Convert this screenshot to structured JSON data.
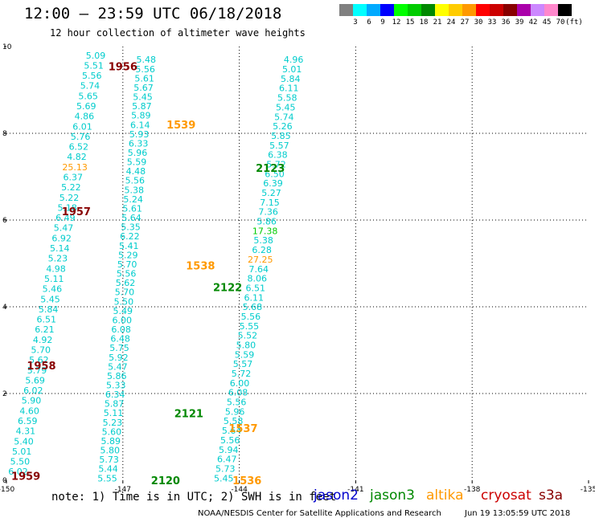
{
  "title": "12:00 – 23:59 UTC 06/18/2018",
  "subtitle": "12 hour collection of altimeter wave heights",
  "legend": {
    "colors": [
      "#808080",
      "#00ffff",
      "#00aaff",
      "#0000ff",
      "#00ff00",
      "#00cc00",
      "#008800",
      "#ffff00",
      "#ffcc00",
      "#ff9900",
      "#ff0000",
      "#cc0000",
      "#880000",
      "#aa00aa",
      "#cc88ff",
      "#ff88cc",
      "#000000"
    ],
    "labels": [
      "3",
      "6",
      "9",
      "12",
      "15",
      "18",
      "21",
      "24",
      "27",
      "30",
      "33",
      "36",
      "39",
      "42",
      "45",
      "70",
      "(ft)"
    ]
  },
  "footer": {
    "note": "note: 1) Time is in UTC; 2) SWH is in feet",
    "satellites": [
      {
        "name": "jason2",
        "color": "#0000cc"
      },
      {
        "name": "jason3",
        "color": "#008800"
      },
      {
        "name": "altika",
        "color": "#ff9900"
      },
      {
        "name": "cryosat",
        "color": "#cc0000"
      },
      {
        "name": "s3a",
        "color": "#880000"
      }
    ],
    "credit": "NOAA/NESDIS Center for Satellite Applications and Research",
    "generated": "Jun 19 13:05:59 UTC 2018"
  },
  "chart_data": {
    "type": "scatter",
    "xlim": [
      -150,
      -135
    ],
    "ylim": [
      0,
      10
    ],
    "xticks": [
      "-150",
      "-147",
      "-144",
      "-141",
      "-138",
      "-135"
    ],
    "yticks": [
      "0",
      "2",
      "4",
      "6",
      "8",
      "10"
    ],
    "grid": true,
    "value_color": "#00cccc",
    "tracks": [
      {
        "values": [
          "5.09",
          "5.51",
          "5.56",
          "5.74",
          "5.65",
          "5.69",
          "4.86",
          "6.01",
          "5.76",
          "6.52",
          "4.82",
          "25.13",
          "6.37",
          "5.22",
          "5.22",
          "5.18",
          "6.49",
          "5.47",
          "6.92",
          "5.14",
          "5.23",
          "4.98",
          "5.11",
          "5.46",
          "5.45",
          "5.84",
          "6.51",
          "6.21",
          "4.92",
          "5.70",
          "5.62",
          "5.79",
          "5.69",
          "6.02",
          "5.90",
          "4.60",
          "6.59",
          "4.31",
          "5.40",
          "5.01",
          "5.50",
          "6.02"
        ],
        "colors": {
          "11": "#ff9900"
        },
        "x_top": -147.7,
        "x_bottom": -149.7,
        "y_top": 9.8,
        "y_bottom": 0.2
      },
      {
        "values": [
          "5.48",
          "5.56",
          "5.61",
          "5.67",
          "5.45",
          "5.87",
          "5.89",
          "6.14",
          "5.93",
          "6.33",
          "5.96",
          "5.59",
          "4.48",
          "5.56",
          "5.38",
          "5.24",
          "5.61",
          "5.64",
          "5.35",
          "6.22",
          "5.41",
          "5.29",
          "5.70",
          "5.56",
          "5.62",
          "5.70",
          "5.50",
          "5.49",
          "6.00",
          "6.08",
          "6.48",
          "5.75",
          "5.92",
          "5.47",
          "5.86",
          "5.33",
          "6.34",
          "5.87",
          "5.11",
          "5.23",
          "5.60",
          "5.89",
          "5.80",
          "5.73",
          "5.44",
          "5.55"
        ],
        "x_top": -146.4,
        "x_bottom": -147.4,
        "y_top": 9.7,
        "y_bottom": 0.05
      },
      {
        "values": [
          "4.96",
          "5.01",
          "5.84",
          "6.11",
          "5.58",
          "5.45",
          "5.74",
          "5.26",
          "5.85",
          "5.57",
          "6.38",
          "5.72",
          "6.50",
          "6.39",
          "5.27",
          "7.15",
          "7.36",
          "5.86",
          "17.38",
          "5.38",
          "6.28",
          "27.25",
          "7.64",
          "8.06",
          "6.51",
          "6.11",
          "5.68",
          "5.56",
          "5.55",
          "5.52",
          "5.80",
          "5.59",
          "5.57",
          "5.72",
          "6.00",
          "6.08",
          "5.56",
          "5.96",
          "5.58",
          "5.64",
          "5.56",
          "5.94",
          "6.47",
          "5.73",
          "5.45"
        ],
        "colors": {
          "18": "#00cc00",
          "21": "#ff9900"
        },
        "x_top": -142.6,
        "x_bottom": -144.4,
        "y_top": 9.7,
        "y_bottom": 0.05
      }
    ],
    "pass_labels": [
      {
        "text": "1956",
        "x": -147.0,
        "y": 9.55,
        "color": "#880000"
      },
      {
        "text": "1539",
        "x": -145.5,
        "y": 8.2,
        "color": "#ff9900"
      },
      {
        "text": "2123",
        "x": -143.2,
        "y": 7.2,
        "color": "#008800"
      },
      {
        "text": "1957",
        "x": -148.2,
        "y": 6.2,
        "color": "#880000"
      },
      {
        "text": "1538",
        "x": -145.0,
        "y": 4.95,
        "color": "#ff9900"
      },
      {
        "text": "2122",
        "x": -144.3,
        "y": 4.45,
        "color": "#008800"
      },
      {
        "text": "1958",
        "x": -149.1,
        "y": 2.65,
        "color": "#880000"
      },
      {
        "text": "2121",
        "x": -145.3,
        "y": 1.55,
        "color": "#008800"
      },
      {
        "text": "1537",
        "x": -143.9,
        "y": 1.2,
        "color": "#ff9900"
      },
      {
        "text": "2120",
        "x": -145.9,
        "y": 0.0,
        "color": "#008800"
      },
      {
        "text": "1959",
        "x": -149.5,
        "y": 0.1,
        "color": "#880000"
      },
      {
        "text": "1536",
        "x": -143.8,
        "y": 0.0,
        "color": "#ff9900"
      }
    ]
  }
}
